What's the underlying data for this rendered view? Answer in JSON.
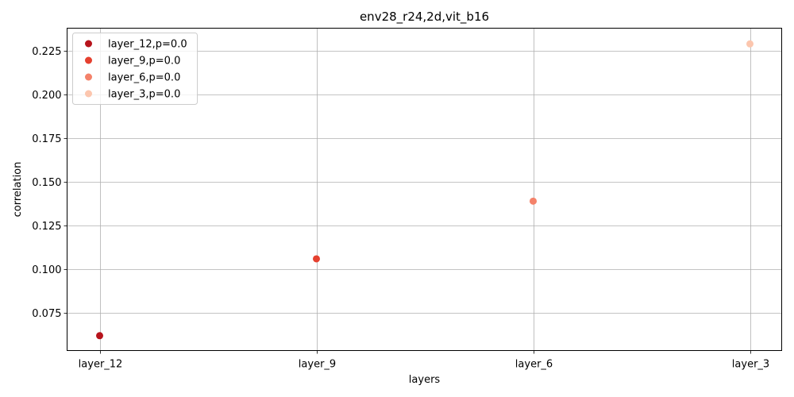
{
  "chart_data": {
    "type": "scatter",
    "title": "env28_r24,2d,vit_b16",
    "xlabel": "layers",
    "ylabel": "correlation",
    "categories": [
      "layer_12",
      "layer_9",
      "layer_6",
      "layer_3"
    ],
    "ylim": [
      0.0535,
      0.238
    ],
    "yticks": [
      0.075,
      0.1,
      0.125,
      0.15,
      0.175,
      0.2,
      0.225
    ],
    "ytick_labels": [
      "0.075",
      "0.100",
      "0.125",
      "0.150",
      "0.175",
      "0.200",
      "0.225"
    ],
    "grid": true,
    "legend_position": "top-left",
    "series": [
      {
        "name": "layer_12,p=0.0",
        "x": "layer_12",
        "value": 0.062,
        "color": "#b7141c"
      },
      {
        "name": "layer_9,p=0.0",
        "x": "layer_9",
        "value": 0.106,
        "color": "#e5402f"
      },
      {
        "name": "layer_6,p=0.0",
        "x": "layer_6",
        "value": 0.139,
        "color": "#f4826a"
      },
      {
        "name": "layer_3,p=0.0",
        "x": "layer_3",
        "value": 0.229,
        "color": "#fcc6ae"
      }
    ]
  }
}
